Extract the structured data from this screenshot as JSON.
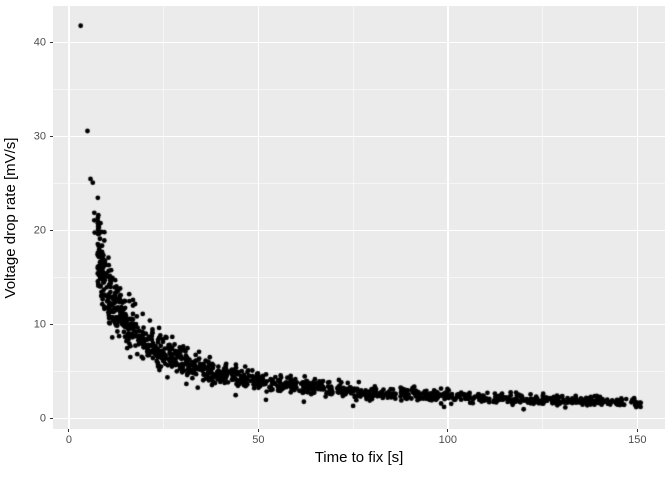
{
  "figure": {
    "background": "#FFFFFF",
    "panel_background": "#EBEBEB",
    "grid_color": "#FFFFFF",
    "point_color": "#000000",
    "tick_label_color": "#4D4D4D",
    "tick_mark_color": "#333333",
    "axis_title_color": "#000000"
  },
  "chart_data": {
    "type": "scatter",
    "title": "",
    "xlabel": "Time to fix [s]",
    "ylabel": "Voltage drop rate [mV/s]",
    "xlim": [
      -4.2,
      157.3
    ],
    "ylim": [
      -1.1,
      43.9
    ],
    "x_ticks": [
      0,
      50,
      100,
      150
    ],
    "y_ticks": [
      0,
      10,
      20,
      30,
      40
    ],
    "x_minor_ticks": [
      25,
      75,
      125
    ],
    "y_minor_ticks": [
      5,
      15,
      25,
      35
    ],
    "grid": true,
    "legend": false,
    "point_radius_px": 2.4,
    "relationship": {
      "model": "power_decay",
      "formula_estimate": "y ~ 85 / x^0.78 * exp(N(0, 0.13))",
      "coefficient": 85,
      "exponent": 0.78,
      "noise_sd_log": 0.13,
      "noise_z_clamp": [
        -3.0,
        2.3
      ]
    },
    "cloud": {
      "n": 1250,
      "x_min": 7.6,
      "x_max": 151,
      "x_skew_power": 1.6,
      "seed": 11
    },
    "outlier_points": [
      [
        3.1,
        41.8
      ],
      [
        4.9,
        30.6
      ],
      [
        5.7,
        25.5
      ],
      [
        6.3,
        25.1
      ],
      [
        6.7,
        21.9
      ],
      [
        6.7,
        21.1
      ],
      [
        6.8,
        19.8
      ]
    ],
    "low_points": [
      [
        26,
        4.4
      ],
      [
        31,
        3.7
      ],
      [
        34,
        3.3
      ],
      [
        44,
        2.5
      ],
      [
        52,
        2.0
      ],
      [
        62,
        1.8
      ],
      [
        75,
        1.35
      ],
      [
        99,
        1.25
      ],
      [
        120,
        1.0
      ],
      [
        131,
        1.2
      ]
    ]
  }
}
